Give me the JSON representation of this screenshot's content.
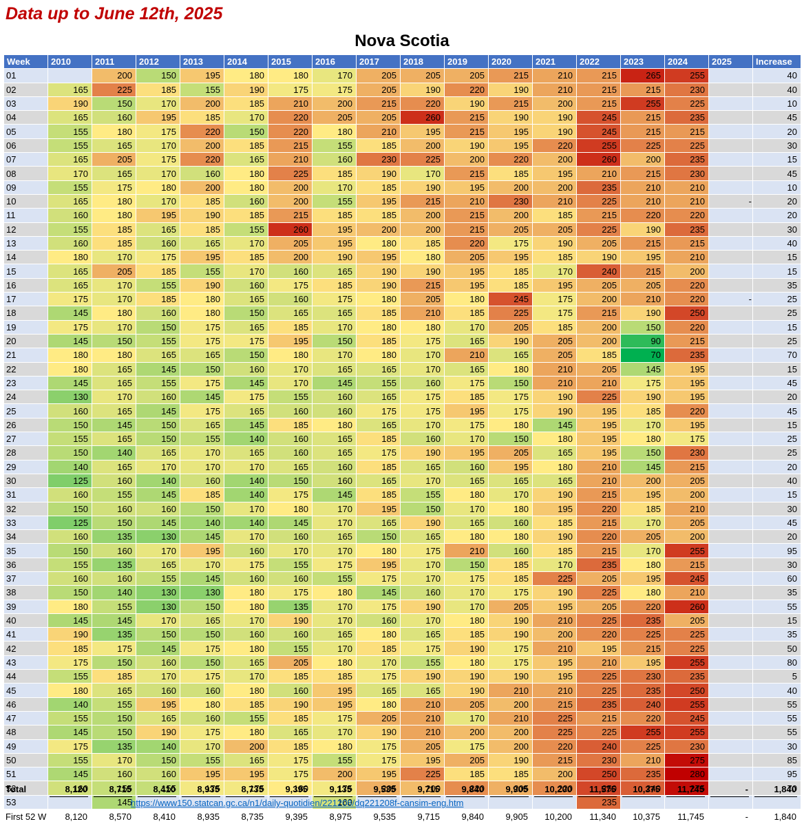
{
  "subtitle": "Data up to June 12th, 2025",
  "title": "Nova Scotia",
  "headers": [
    "Week",
    "2010",
    "2011",
    "2012",
    "2013",
    "2014",
    "2015",
    "2016",
    "2017",
    "2018",
    "2019",
    "2020",
    "2021",
    "2022",
    "2023",
    "2024",
    "2025",
    "Increase"
  ],
  "rows": [
    [
      "01",
      "",
      "200",
      "150",
      "195",
      "180",
      "180",
      "170",
      "205",
      "205",
      "205",
      "215",
      "210",
      "215",
      "265",
      "255",
      "",
      "40"
    ],
    [
      "02",
      "165",
      "225",
      "185",
      "155",
      "190",
      "175",
      "175",
      "205",
      "190",
      "220",
      "190",
      "210",
      "215",
      "215",
      "230",
      "",
      "40"
    ],
    [
      "03",
      "190",
      "150",
      "170",
      "200",
      "185",
      "210",
      "200",
      "215",
      "220",
      "190",
      "215",
      "200",
      "215",
      "255",
      "225",
      "",
      "10"
    ],
    [
      "04",
      "165",
      "160",
      "195",
      "185",
      "170",
      "220",
      "205",
      "205",
      "260",
      "215",
      "190",
      "190",
      "245",
      "215",
      "235",
      "",
      "45"
    ],
    [
      "05",
      "155",
      "180",
      "175",
      "220",
      "150",
      "220",
      "180",
      "210",
      "195",
      "215",
      "195",
      "190",
      "245",
      "215",
      "215",
      "",
      "20"
    ],
    [
      "06",
      "155",
      "165",
      "170",
      "200",
      "185",
      "215",
      "155",
      "185",
      "200",
      "190",
      "195",
      "220",
      "255",
      "225",
      "225",
      "",
      "30"
    ],
    [
      "07",
      "165",
      "205",
      "175",
      "220",
      "165",
      "210",
      "160",
      "230",
      "225",
      "200",
      "220",
      "200",
      "260",
      "200",
      "235",
      "",
      "15"
    ],
    [
      "08",
      "170",
      "165",
      "170",
      "160",
      "180",
      "225",
      "185",
      "190",
      "170",
      "215",
      "185",
      "195",
      "210",
      "215",
      "230",
      "",
      "45"
    ],
    [
      "09",
      "155",
      "175",
      "180",
      "200",
      "180",
      "200",
      "170",
      "185",
      "190",
      "195",
      "200",
      "200",
      "235",
      "210",
      "210",
      "",
      "10"
    ],
    [
      "10",
      "165",
      "180",
      "170",
      "185",
      "160",
      "200",
      "155",
      "195",
      "215",
      "210",
      "230",
      "210",
      "225",
      "210",
      "210",
      "-",
      "20"
    ],
    [
      "11",
      "160",
      "180",
      "195",
      "190",
      "185",
      "215",
      "185",
      "185",
      "200",
      "215",
      "200",
      "185",
      "215",
      "220",
      "220",
      "",
      "20"
    ],
    [
      "12",
      "155",
      "185",
      "165",
      "185",
      "155",
      "260",
      "195",
      "200",
      "200",
      "215",
      "205",
      "205",
      "225",
      "190",
      "235",
      "",
      "30"
    ],
    [
      "13",
      "160",
      "185",
      "160",
      "165",
      "170",
      "205",
      "195",
      "180",
      "185",
      "220",
      "175",
      "190",
      "205",
      "215",
      "215",
      "",
      "40"
    ],
    [
      "14",
      "180",
      "170",
      "175",
      "195",
      "185",
      "200",
      "190",
      "195",
      "180",
      "205",
      "195",
      "185",
      "190",
      "195",
      "210",
      "",
      "15"
    ],
    [
      "15",
      "165",
      "205",
      "185",
      "155",
      "170",
      "160",
      "165",
      "190",
      "190",
      "195",
      "185",
      "170",
      "240",
      "215",
      "200",
      "",
      "15"
    ],
    [
      "16",
      "165",
      "170",
      "155",
      "190",
      "160",
      "175",
      "185",
      "190",
      "215",
      "195",
      "185",
      "195",
      "205",
      "205",
      "220",
      "",
      "35"
    ],
    [
      "17",
      "175",
      "170",
      "185",
      "180",
      "165",
      "160",
      "175",
      "180",
      "205",
      "180",
      "245",
      "175",
      "200",
      "210",
      "220",
      "-",
      "25"
    ],
    [
      "18",
      "145",
      "180",
      "160",
      "180",
      "150",
      "165",
      "165",
      "185",
      "210",
      "185",
      "225",
      "175",
      "215",
      "190",
      "250",
      "",
      "25"
    ],
    [
      "19",
      "175",
      "170",
      "150",
      "175",
      "165",
      "185",
      "170",
      "180",
      "180",
      "170",
      "205",
      "185",
      "200",
      "150",
      "220",
      "",
      "15"
    ],
    [
      "20",
      "145",
      "150",
      "155",
      "175",
      "175",
      "195",
      "150",
      "185",
      "175",
      "165",
      "190",
      "205",
      "200",
      "90",
      "215",
      "",
      "25"
    ],
    [
      "21",
      "180",
      "180",
      "165",
      "165",
      "150",
      "180",
      "170",
      "180",
      "170",
      "210",
      "165",
      "205",
      "185",
      "70",
      "235",
      "",
      "70"
    ],
    [
      "22",
      "180",
      "165",
      "145",
      "150",
      "160",
      "170",
      "165",
      "165",
      "170",
      "165",
      "180",
      "210",
      "205",
      "145",
      "195",
      "",
      "15"
    ],
    [
      "23",
      "145",
      "165",
      "155",
      "175",
      "145",
      "170",
      "145",
      "155",
      "160",
      "175",
      "150",
      "210",
      "210",
      "175",
      "195",
      "",
      "45"
    ],
    [
      "24",
      "130",
      "170",
      "160",
      "145",
      "175",
      "155",
      "160",
      "165",
      "175",
      "185",
      "175",
      "190",
      "225",
      "190",
      "195",
      "",
      "20"
    ],
    [
      "25",
      "160",
      "165",
      "145",
      "175",
      "165",
      "160",
      "160",
      "175",
      "175",
      "195",
      "175",
      "190",
      "195",
      "185",
      "220",
      "",
      "45"
    ],
    [
      "26",
      "150",
      "145",
      "150",
      "165",
      "145",
      "185",
      "180",
      "165",
      "170",
      "175",
      "180",
      "145",
      "195",
      "170",
      "195",
      "",
      "15"
    ],
    [
      "27",
      "155",
      "165",
      "150",
      "155",
      "140",
      "160",
      "165",
      "185",
      "160",
      "170",
      "150",
      "180",
      "195",
      "180",
      "175",
      "",
      "25"
    ],
    [
      "28",
      "150",
      "140",
      "165",
      "170",
      "165",
      "160",
      "165",
      "175",
      "190",
      "195",
      "205",
      "165",
      "195",
      "150",
      "230",
      "",
      "25"
    ],
    [
      "29",
      "140",
      "165",
      "170",
      "170",
      "170",
      "165",
      "160",
      "185",
      "165",
      "160",
      "195",
      "180",
      "210",
      "145",
      "215",
      "",
      "20"
    ],
    [
      "30",
      "125",
      "160",
      "140",
      "160",
      "140",
      "150",
      "160",
      "165",
      "170",
      "165",
      "165",
      "165",
      "210",
      "200",
      "205",
      "",
      "40"
    ],
    [
      "31",
      "160",
      "155",
      "145",
      "185",
      "140",
      "175",
      "145",
      "185",
      "155",
      "180",
      "170",
      "190",
      "215",
      "195",
      "200",
      "",
      "15"
    ],
    [
      "32",
      "150",
      "160",
      "160",
      "150",
      "170",
      "180",
      "170",
      "195",
      "150",
      "170",
      "180",
      "195",
      "220",
      "185",
      "210",
      "",
      "30"
    ],
    [
      "33",
      "125",
      "150",
      "145",
      "140",
      "140",
      "145",
      "170",
      "165",
      "190",
      "165",
      "160",
      "185",
      "215",
      "170",
      "205",
      "",
      "45"
    ],
    [
      "34",
      "160",
      "135",
      "130",
      "145",
      "170",
      "160",
      "165",
      "150",
      "165",
      "180",
      "180",
      "190",
      "220",
      "205",
      "200",
      "",
      "20"
    ],
    [
      "35",
      "150",
      "160",
      "170",
      "195",
      "160",
      "170",
      "170",
      "180",
      "175",
      "210",
      "160",
      "185",
      "215",
      "170",
      "255",
      "",
      "95"
    ],
    [
      "36",
      "155",
      "135",
      "165",
      "170",
      "175",
      "155",
      "175",
      "195",
      "170",
      "150",
      "185",
      "170",
      "235",
      "180",
      "215",
      "",
      "30"
    ],
    [
      "37",
      "160",
      "160",
      "155",
      "145",
      "160",
      "160",
      "155",
      "175",
      "170",
      "175",
      "185",
      "225",
      "205",
      "195",
      "245",
      "",
      "60"
    ],
    [
      "38",
      "150",
      "140",
      "130",
      "130",
      "180",
      "175",
      "180",
      "145",
      "160",
      "170",
      "175",
      "190",
      "225",
      "180",
      "210",
      "",
      "35"
    ],
    [
      "39",
      "180",
      "155",
      "130",
      "150",
      "180",
      "135",
      "170",
      "175",
      "190",
      "170",
      "205",
      "195",
      "205",
      "220",
      "260",
      "",
      "55"
    ],
    [
      "40",
      "145",
      "145",
      "170",
      "165",
      "170",
      "190",
      "170",
      "160",
      "170",
      "180",
      "190",
      "210",
      "225",
      "235",
      "205",
      "",
      "15"
    ],
    [
      "41",
      "190",
      "135",
      "150",
      "150",
      "160",
      "160",
      "165",
      "180",
      "165",
      "185",
      "190",
      "200",
      "220",
      "225",
      "225",
      "",
      "35"
    ],
    [
      "42",
      "185",
      "175",
      "145",
      "175",
      "180",
      "155",
      "170",
      "185",
      "175",
      "190",
      "175",
      "210",
      "195",
      "215",
      "225",
      "",
      "50"
    ],
    [
      "43",
      "175",
      "150",
      "160",
      "150",
      "165",
      "205",
      "180",
      "170",
      "155",
      "180",
      "175",
      "195",
      "210",
      "195",
      "255",
      "",
      "80"
    ],
    [
      "44",
      "155",
      "185",
      "170",
      "175",
      "170",
      "185",
      "185",
      "175",
      "190",
      "190",
      "190",
      "195",
      "225",
      "230",
      "235",
      "",
      "5"
    ],
    [
      "45",
      "180",
      "165",
      "160",
      "160",
      "180",
      "160",
      "195",
      "165",
      "165",
      "190",
      "210",
      "210",
      "225",
      "235",
      "250",
      "",
      "40"
    ],
    [
      "46",
      "140",
      "155",
      "195",
      "180",
      "185",
      "190",
      "195",
      "180",
      "210",
      "205",
      "200",
      "215",
      "235",
      "240",
      "255",
      "",
      "55"
    ],
    [
      "47",
      "155",
      "150",
      "165",
      "160",
      "155",
      "185",
      "175",
      "205",
      "210",
      "170",
      "210",
      "225",
      "215",
      "220",
      "245",
      "",
      "55"
    ],
    [
      "48",
      "145",
      "150",
      "190",
      "175",
      "180",
      "165",
      "170",
      "190",
      "210",
      "200",
      "200",
      "225",
      "225",
      "255",
      "255",
      "",
      "55"
    ],
    [
      "49",
      "175",
      "135",
      "140",
      "170",
      "200",
      "185",
      "180",
      "175",
      "205",
      "175",
      "200",
      "220",
      "240",
      "225",
      "230",
      "",
      "30"
    ],
    [
      "50",
      "155",
      "170",
      "150",
      "155",
      "165",
      "175",
      "155",
      "175",
      "195",
      "205",
      "190",
      "215",
      "230",
      "210",
      "275",
      "",
      "85"
    ],
    [
      "51",
      "145",
      "160",
      "160",
      "195",
      "195",
      "175",
      "200",
      "195",
      "225",
      "185",
      "185",
      "200",
      "250",
      "235",
      "280",
      "",
      "95"
    ],
    [
      "52",
      "160",
      "155",
      "155",
      "175",
      "175",
      "180",
      "175",
      "205",
      "200",
      "220",
      "205",
      "220",
      "250",
      "240",
      "275",
      "",
      "70"
    ],
    [
      "53",
      "",
      "145",
      "",
      "",
      "",
      "",
      "160",
      "",
      "",
      "",
      "",
      "",
      "235",
      "",
      "",
      "",
      ""
    ]
  ],
  "footer": {
    "total_label": "Total",
    "total_values": [
      "8,120",
      "8,715",
      "8,410",
      "8,935",
      "8,735",
      "9,395",
      "9,135",
      "9,535",
      "9,715",
      "9,840",
      "9,905",
      "10,200",
      "11,575",
      "10,375",
      "11,745",
      "-",
      "1,840"
    ],
    "source_url": "https://www150.statcan.gc.ca/n1/daily-quotidien/221208/dq221208f-cansim-eng.htm",
    "first52_label": "First 52 W",
    "first52_values": [
      "8,120",
      "8,570",
      "8,410",
      "8,935",
      "8,735",
      "9,395",
      "8,975",
      "9,535",
      "9,715",
      "9,840",
      "9,905",
      "10,200",
      "11,340",
      "10,375",
      "11,745",
      "-",
      "1,840"
    ]
  },
  "colors": {
    "header_bg": "#4472c4",
    "row_odd": "#dae3f3",
    "row_even": "#d9d9d9",
    "scale_low": "#00b050",
    "scale_mid": "#ffeb84",
    "scale_high": "#c00000",
    "link": "#0563c1",
    "subtitle": "#c00000"
  }
}
